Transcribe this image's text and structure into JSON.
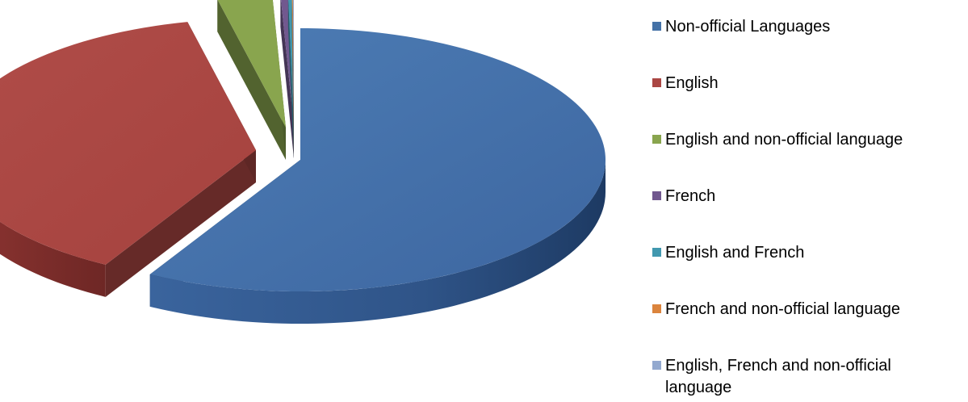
{
  "chart_data": {
    "type": "pie",
    "title": "",
    "style": "3d-exploded",
    "legend_position": "right",
    "categories": [
      "Non-official Languages",
      "English",
      "English and non-official language",
      "French",
      "English and French",
      "French and non-official language",
      "English, French and non-official language"
    ],
    "values": [
      58.2,
      38.2,
      2.9,
      0.4,
      0.2,
      0.05,
      0.05
    ],
    "colors": [
      "#4572A7",
      "#AA4643",
      "#89A54E",
      "#71588F",
      "#4198AF",
      "#DB843D",
      "#93A9CF"
    ]
  }
}
